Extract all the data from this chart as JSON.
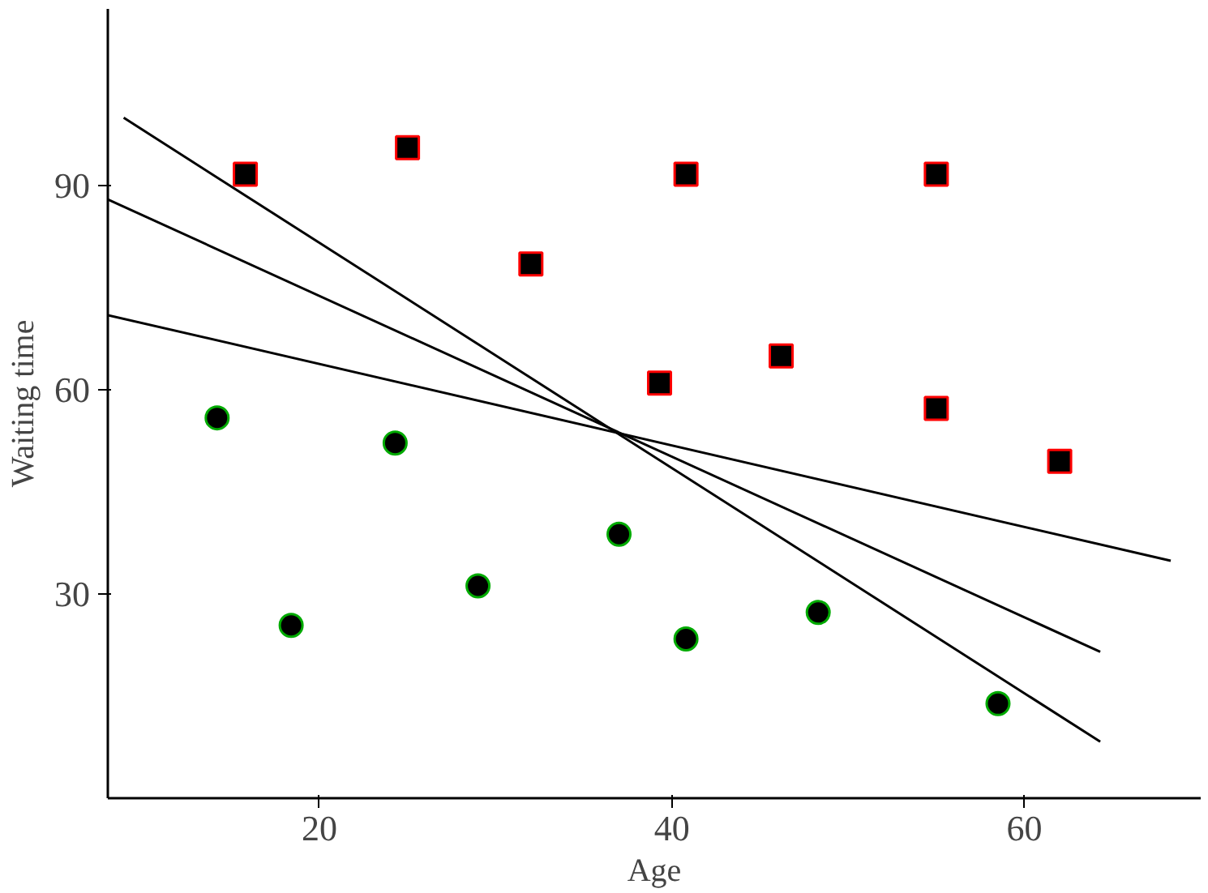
{
  "chart_data": {
    "type": "scatter",
    "xlabel": "Age",
    "ylabel": "Waiting time",
    "xlim": [
      8,
      70
    ],
    "ylim": [
      0,
      116
    ],
    "xticks": [
      20,
      40,
      60
    ],
    "yticks": [
      30,
      60,
      90
    ],
    "grid": false,
    "series": [
      {
        "marker": "square",
        "color": "#ff0000",
        "x": [
          15.8,
          25,
          32,
          40.8,
          55,
          39.3,
          46.2,
          55,
          62
        ],
        "values": [
          91.7,
          95.6,
          78.5,
          91.7,
          91.7,
          61,
          65,
          57.3,
          49.5
        ]
      },
      {
        "marker": "circle",
        "color": "#00aa00",
        "x": [
          14.2,
          18.4,
          24.3,
          29,
          37,
          40.8,
          48.3,
          58.5
        ],
        "values": [
          55.9,
          25.4,
          52.2,
          31.2,
          38.8,
          23.4,
          27.3,
          13.9
        ]
      },
      {
        "type": "line",
        "color": "#000000",
        "x": [
          8,
          64.3
        ],
        "values": [
          88,
          21.5
        ]
      },
      {
        "type": "line",
        "color": "#000000",
        "x": [
          8.9,
          64.3
        ],
        "values": [
          100,
          8.3
        ]
      },
      {
        "type": "line",
        "color": "#000000",
        "x": [
          8,
          68.3
        ],
        "values": [
          71,
          34.9
        ]
      }
    ]
  }
}
